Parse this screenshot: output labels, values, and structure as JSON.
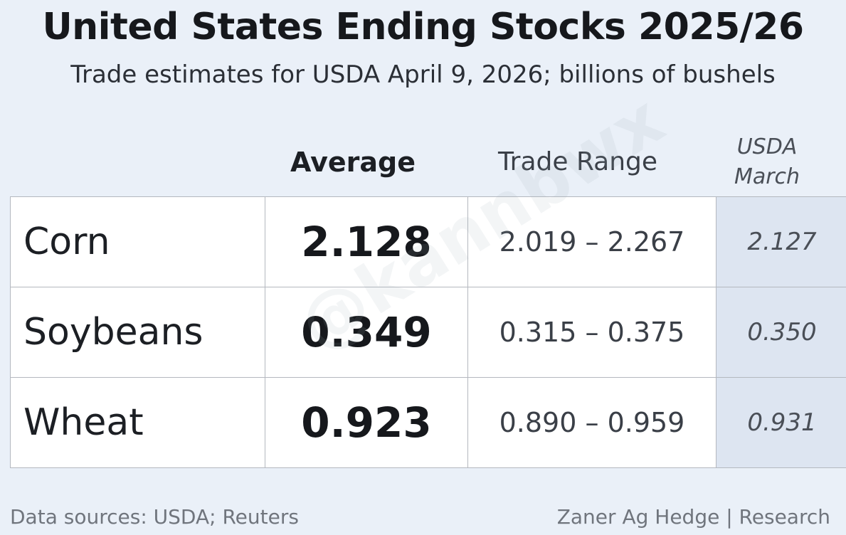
{
  "chart_data": {
    "type": "table",
    "title": "United States Ending Stocks 2025/26",
    "subtitle": "Trade estimates for USDA April 9, 2026; billions of bushels",
    "columns": {
      "average": "Average",
      "range": "Trade Range",
      "usda_line1": "USDA",
      "usda_line2": "March"
    },
    "rows": [
      {
        "name": "Corn",
        "average": "2.128",
        "range": "2.019 – 2.267",
        "usda_march": "2.127"
      },
      {
        "name": "Soybeans",
        "average": "0.349",
        "range": "0.315 – 0.375",
        "usda_march": "0.350"
      },
      {
        "name": "Wheat",
        "average": "0.923",
        "range": "0.890 – 0.959",
        "usda_march": "0.931"
      }
    ]
  },
  "footer": {
    "sources": "Data sources: USDA; Reuters",
    "credit": "Zaner Ag Hedge | Research"
  },
  "watermark": "@kannbwx",
  "colors": {
    "background": "#eaf0f8",
    "usda_column": "#dde5f1",
    "cell": "#ffffff",
    "border": "#b4b8bf"
  }
}
